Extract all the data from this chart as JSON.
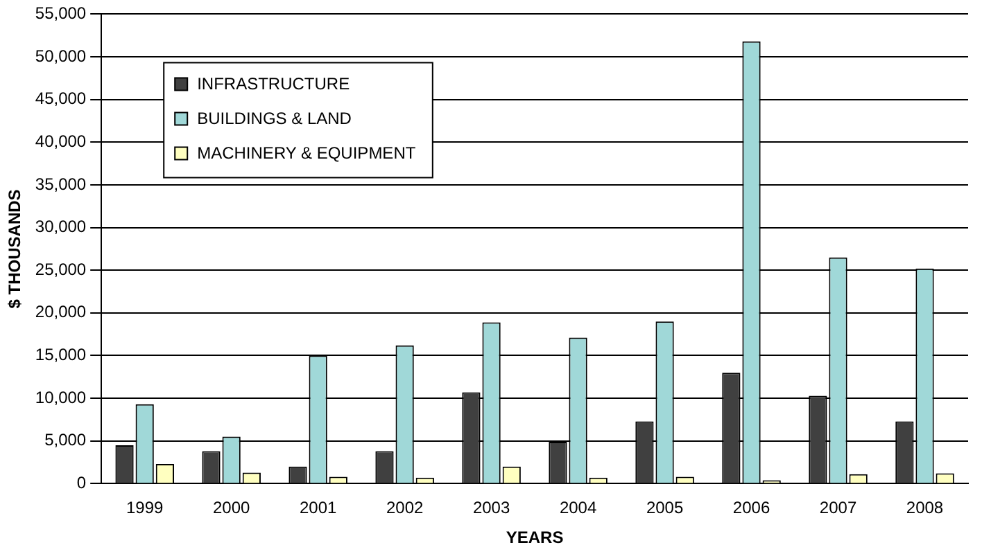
{
  "chart_data": {
    "type": "bar",
    "xlabel": "YEARS",
    "ylabel": "$ THOUSANDS",
    "categories": [
      "1999",
      "2000",
      "2001",
      "2002",
      "2003",
      "2004",
      "2005",
      "2006",
      "2007",
      "2008"
    ],
    "series": [
      {
        "name": "INFRASTRUCTURE",
        "color": "#404040",
        "values": [
          4500,
          3800,
          2000,
          3800,
          10700,
          4900,
          7300,
          13000,
          10300,
          7300
        ]
      },
      {
        "name": "BUILDINGS & LAND",
        "color": "#a0d8d8",
        "values": [
          9300,
          5500,
          15000,
          16200,
          18900,
          17100,
          19000,
          51800,
          26500,
          25200
        ]
      },
      {
        "name": "MACHINERY & EQUIPMENT",
        "color": "#ffffc0",
        "values": [
          2300,
          1300,
          800,
          700,
          2000,
          700,
          800,
          400,
          1100,
          1200
        ]
      }
    ],
    "ylim": [
      0,
      55000
    ],
    "yticks": [
      {
        "value": 0,
        "label": "0"
      },
      {
        "value": 5000,
        "label": "5,000"
      },
      {
        "value": 10000,
        "label": "10,000"
      },
      {
        "value": 15000,
        "label": "15,000"
      },
      {
        "value": 20000,
        "label": "20,000"
      },
      {
        "value": 25000,
        "label": "25,000"
      },
      {
        "value": 30000,
        "label": "30,000"
      },
      {
        "value": 35000,
        "label": "35,000"
      },
      {
        "value": 40000,
        "label": "40,000"
      },
      {
        "value": 45000,
        "label": "45,000"
      },
      {
        "value": 50000,
        "label": "50,000"
      },
      {
        "value": 55000,
        "label": "55,000"
      }
    ],
    "grid": "y",
    "legend": "top left"
  }
}
